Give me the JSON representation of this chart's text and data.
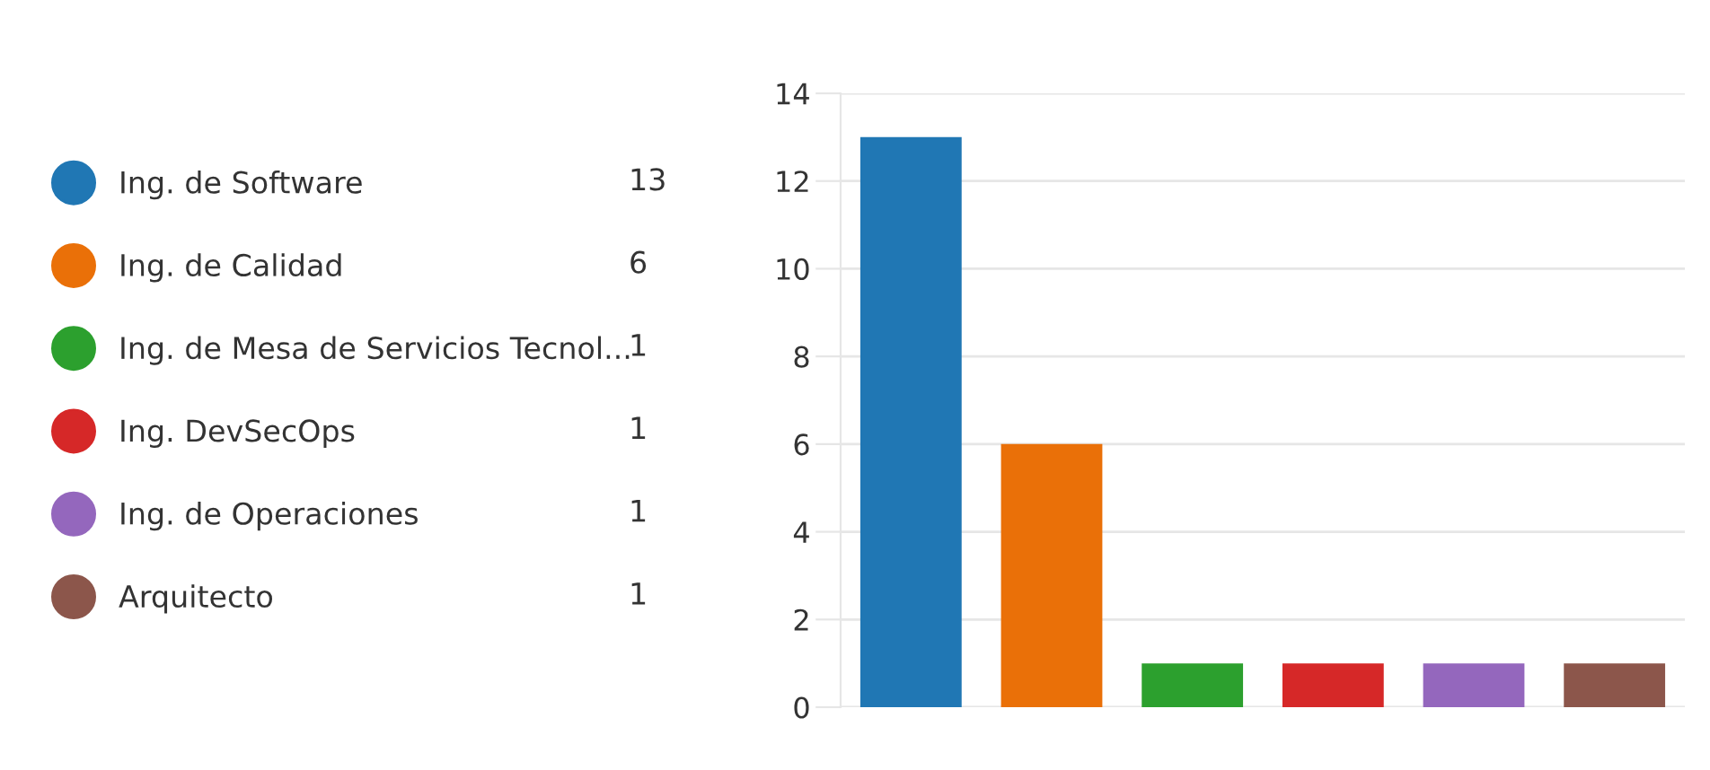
{
  "chart_data": {
    "type": "bar",
    "categories": [
      null,
      null,
      null,
      null,
      null,
      null
    ],
    "series": [
      {
        "name": "Ing. de Software",
        "color": "#2077b4",
        "values": [
          13,
          null,
          null,
          null,
          null,
          null
        ]
      },
      {
        "name": "Ing. de Calidad",
        "color": "#ea7008",
        "values": [
          null,
          6,
          null,
          null,
          null,
          null
        ]
      },
      {
        "name": "Ing. de Mesa de Servicios Tecnol...",
        "color": "#2ca02e",
        "values": [
          null,
          null,
          1,
          null,
          null,
          null
        ]
      },
      {
        "name": "Ing. DevSecOps",
        "color": "#d62828",
        "values": [
          null,
          null,
          null,
          1,
          null,
          null
        ]
      },
      {
        "name": "Ing. de Operaciones",
        "color": "#9467bd",
        "values": [
          null,
          null,
          null,
          null,
          1,
          null
        ]
      },
      {
        "name": "Arquitecto",
        "color": "#8c564b",
        "values": [
          null,
          null,
          null,
          null,
          null,
          1
        ]
      }
    ],
    "annotations": [
      "13",
      "6",
      "1",
      "1",
      "1",
      "1"
    ],
    "ylim": [
      0,
      14
    ],
    "yticks": [
      0,
      2,
      4,
      6,
      8,
      10,
      12,
      14
    ],
    "grid": "y",
    "legend": "left",
    "tick_labels": "y"
  }
}
